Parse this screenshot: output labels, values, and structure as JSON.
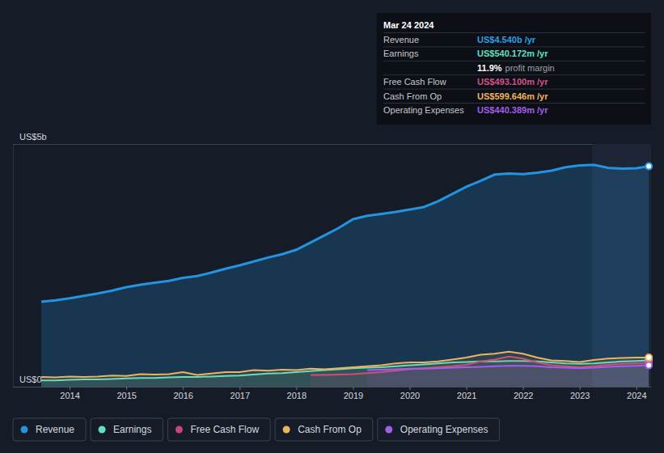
{
  "chart_data": {
    "type": "area",
    "x": [
      2013.5,
      2013.75,
      2014,
      2014.25,
      2014.5,
      2014.75,
      2015,
      2015.25,
      2015.5,
      2015.75,
      2016,
      2016.25,
      2016.5,
      2016.75,
      2017,
      2017.25,
      2017.5,
      2017.75,
      2018,
      2018.25,
      2018.5,
      2018.75,
      2019,
      2019.25,
      2019.5,
      2019.75,
      2020,
      2020.25,
      2020.5,
      2020.75,
      2021,
      2021.25,
      2021.5,
      2021.75,
      2022,
      2022.25,
      2022.5,
      2022.75,
      2023,
      2023.25,
      2023.5,
      2023.75,
      2024,
      2024.22
    ],
    "xlim": [
      2013.0,
      2024.26
    ],
    "xticks": [
      2014,
      2015,
      2016,
      2017,
      2018,
      2019,
      2020,
      2021,
      2022,
      2023,
      2024
    ],
    "ylim": [
      0,
      5
    ],
    "yticks": [
      {
        "value": 0,
        "label": "US$0"
      },
      {
        "value": 5,
        "label": "US$5b"
      }
    ],
    "grid": true,
    "legend": "bottom",
    "highlight": {
      "x": [
        2023.22,
        2024.26
      ]
    },
    "series": [
      {
        "name": "Revenue",
        "color": "#2394df",
        "values": [
          1.75,
          1.78,
          1.82,
          1.87,
          1.92,
          1.98,
          2.05,
          2.1,
          2.14,
          2.18,
          2.24,
          2.28,
          2.35,
          2.43,
          2.5,
          2.58,
          2.66,
          2.73,
          2.82,
          2.97,
          3.12,
          3.27,
          3.45,
          3.52,
          3.56,
          3.6,
          3.65,
          3.7,
          3.82,
          3.97,
          4.12,
          4.24,
          4.37,
          4.39,
          4.38,
          4.41,
          4.45,
          4.52,
          4.56,
          4.57,
          4.51,
          4.49,
          4.5,
          4.54
        ]
      },
      {
        "name": "Earnings",
        "color": "#5fe0c1",
        "values": [
          0.13,
          0.13,
          0.14,
          0.15,
          0.15,
          0.16,
          0.17,
          0.18,
          0.18,
          0.19,
          0.2,
          0.2,
          0.21,
          0.22,
          0.23,
          0.25,
          0.27,
          0.28,
          0.3,
          0.32,
          0.34,
          0.36,
          0.38,
          0.39,
          0.4,
          0.42,
          0.44,
          0.46,
          0.48,
          0.5,
          0.51,
          0.52,
          0.52,
          0.53,
          0.53,
          0.52,
          0.5,
          0.48,
          0.47,
          0.48,
          0.5,
          0.52,
          0.53,
          0.54
        ]
      },
      {
        "name": "Free Cash Flow",
        "color": "#c9457c",
        "values": [
          null,
          null,
          null,
          null,
          null,
          null,
          null,
          null,
          null,
          null,
          null,
          null,
          null,
          null,
          null,
          null,
          null,
          null,
          null,
          0.24,
          0.24,
          0.25,
          0.26,
          0.28,
          0.3,
          0.33,
          0.36,
          0.38,
          0.4,
          0.42,
          0.45,
          0.52,
          0.56,
          0.62,
          0.58,
          0.5,
          0.44,
          0.42,
          0.4,
          0.42,
          0.45,
          0.47,
          0.48,
          0.493
        ]
      },
      {
        "name": "Cash From Op",
        "color": "#efb35d",
        "values": [
          0.2,
          0.19,
          0.21,
          0.2,
          0.21,
          0.23,
          0.22,
          0.26,
          0.25,
          0.26,
          0.3,
          0.24,
          0.27,
          0.3,
          0.3,
          0.34,
          0.33,
          0.35,
          0.34,
          0.37,
          0.36,
          0.38,
          0.4,
          0.42,
          0.44,
          0.48,
          0.5,
          0.5,
          0.52,
          0.56,
          0.6,
          0.66,
          0.68,
          0.72,
          0.68,
          0.6,
          0.54,
          0.53,
          0.51,
          0.55,
          0.58,
          0.59,
          0.6,
          0.6
        ]
      },
      {
        "name": "Operating Expenses",
        "color": "#a35ee8",
        "values": [
          null,
          null,
          null,
          null,
          null,
          null,
          null,
          null,
          null,
          null,
          null,
          null,
          null,
          null,
          null,
          null,
          null,
          null,
          null,
          null,
          null,
          null,
          null,
          0.34,
          0.35,
          0.36,
          0.37,
          0.37,
          0.38,
          0.39,
          0.4,
          0.41,
          0.42,
          0.43,
          0.43,
          0.42,
          0.4,
          0.39,
          0.38,
          0.39,
          0.41,
          0.42,
          0.43,
          0.44
        ]
      }
    ],
    "tooltip": {
      "title": "Mar 24 2024",
      "rows": [
        {
          "label": "Revenue",
          "text": "US$4.540b /yr",
          "color": "#2e9fe6"
        },
        {
          "label": "Earnings",
          "text": "US$540.172m /yr",
          "color": "#5fe0c1"
        },
        {
          "value_text": "11.9%",
          "text": "profit margin"
        },
        {
          "label": "Free Cash Flow",
          "text": "US$493.100m /yr",
          "color": "#d4508a"
        },
        {
          "label": "Cash From Op",
          "text": "US$599.646m /yr",
          "color": "#efb35d"
        },
        {
          "label": "Operating Expenses",
          "text": "US$440.389m /yr",
          "color": "#a35ee8"
        }
      ]
    }
  }
}
